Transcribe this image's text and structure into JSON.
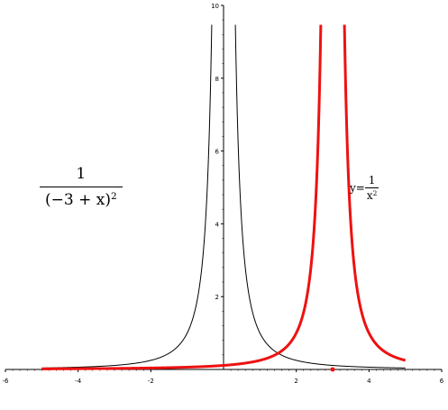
{
  "chart_data": {
    "type": "line",
    "xlim": [
      -6,
      6
    ],
    "ylim": [
      0,
      10
    ],
    "x_ticks": [
      "-6",
      "-4",
      "-2",
      "2",
      "4",
      "6"
    ],
    "y_ticks": [
      "2",
      "4",
      "6",
      "8",
      "10"
    ],
    "series": [
      {
        "name": "y = 1/x²",
        "color": "#000000",
        "x_range": [
          -5,
          5
        ],
        "points": [
          [
            -5,
            0.04
          ],
          [
            -4,
            0.0625
          ],
          [
            -3,
            0.111
          ],
          [
            -2,
            0.25
          ],
          [
            -1.5,
            0.444
          ],
          [
            -1,
            1
          ],
          [
            -0.75,
            1.78
          ],
          [
            -0.5,
            4
          ],
          [
            -0.4,
            6.25
          ],
          [
            -0.316,
            10
          ],
          [
            0.316,
            10
          ],
          [
            0.4,
            6.25
          ],
          [
            0.5,
            4
          ],
          [
            0.75,
            1.78
          ],
          [
            1,
            1
          ],
          [
            1.5,
            0.444
          ],
          [
            2,
            0.25
          ],
          [
            3,
            0.111
          ],
          [
            4,
            0.0625
          ],
          [
            5,
            0.04
          ]
        ]
      },
      {
        "name": "1/(-3 + x)²",
        "color": "#ee1111",
        "x_range": [
          -5,
          5
        ],
        "points": [
          [
            -5,
            0.0156
          ],
          [
            -3,
            0.0278
          ],
          [
            -1,
            0.0625
          ],
          [
            0,
            0.111
          ],
          [
            1,
            0.25
          ],
          [
            1.5,
            0.444
          ],
          [
            2,
            1
          ],
          [
            2.5,
            4
          ],
          [
            2.684,
            10
          ],
          [
            3.316,
            10
          ],
          [
            3.5,
            4
          ],
          [
            4,
            1
          ],
          [
            4.5,
            0.444
          ],
          [
            5,
            0.25
          ]
        ]
      }
    ],
    "marker": {
      "x": 3,
      "y": 0,
      "color": "#ee1111"
    }
  },
  "labels": {
    "left_num": "1",
    "left_den_main": "(−3 + x)",
    "left_den_exp": "2",
    "right_prefix": "y=",
    "right_num": "1",
    "right_den_main": "x",
    "right_den_exp": "2"
  }
}
